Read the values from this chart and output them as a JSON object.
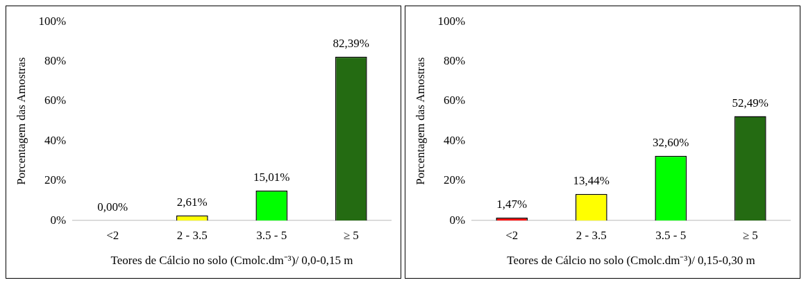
{
  "chart_data": [
    {
      "type": "bar",
      "categories": [
        "<2",
        "2 - 3.5",
        "3.5 - 5",
        "≥ 5"
      ],
      "values": [
        0,
        2.61,
        15.01,
        82.39
      ],
      "colors": [
        "#ff0000",
        "#ffff00",
        "#00ff00",
        "#246b12"
      ],
      "value_labels": [
        "0,00%",
        "2,61%",
        "15,01%",
        "82,39%"
      ],
      "ylabel": "Porcentagem das Amostras",
      "xlabel": "Teores de Cálcio no solo (Cmolc.dm⁻³)/ 0,0-0,15 m",
      "ylim": [
        0,
        100
      ],
      "yticks": [
        {
          "value": 0,
          "label": "0%"
        },
        {
          "value": 20,
          "label": "20%"
        },
        {
          "value": 40,
          "label": "40%"
        },
        {
          "value": 60,
          "label": "60%"
        },
        {
          "value": 80,
          "label": "80%"
        },
        {
          "value": 100,
          "label": "100%"
        }
      ],
      "grid": false,
      "legend": false
    },
    {
      "type": "bar",
      "categories": [
        "<2",
        "2 - 3.5",
        "3.5 - 5",
        "≥ 5"
      ],
      "values": [
        1.47,
        13.44,
        32.6,
        52.49
      ],
      "colors": [
        "#ff0000",
        "#ffff00",
        "#00ff00",
        "#246b12"
      ],
      "value_labels": [
        "1,47%",
        "13,44%",
        "32,60%",
        "52,49%"
      ],
      "ylabel": "Porcentagem das Amostras",
      "xlabel": "Teores de Cálcio no solo (Cmolc.dm⁻³)/ 0,15-0,30 m",
      "ylim": [
        0,
        100
      ],
      "yticks": [
        {
          "value": 0,
          "label": "0%"
        },
        {
          "value": 20,
          "label": "20%"
        },
        {
          "value": 40,
          "label": "40%"
        },
        {
          "value": 60,
          "label": "60%"
        },
        {
          "value": 80,
          "label": "80%"
        },
        {
          "value": 100,
          "label": "100%"
        }
      ],
      "grid": false,
      "legend": false
    }
  ]
}
